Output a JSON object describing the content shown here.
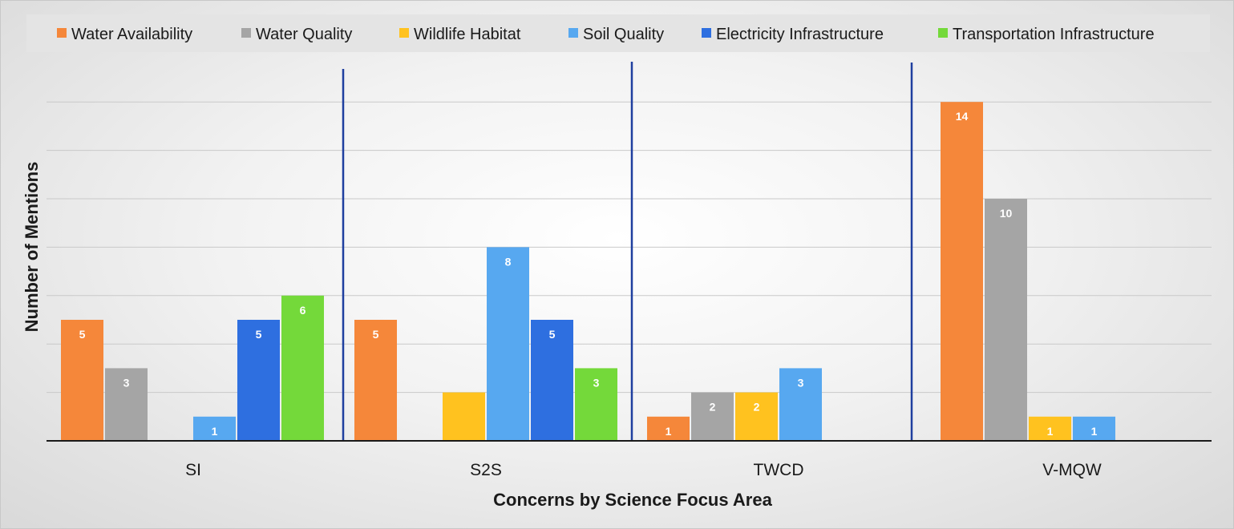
{
  "chart_data": {
    "type": "bar",
    "xlabel": "Concerns by Science Focus Area",
    "ylabel": "Number of Mentions",
    "categories": [
      "SI",
      "S2S",
      "TWCD",
      "V-MQW"
    ],
    "ylim": [
      0,
      14
    ],
    "grid": true,
    "legend_position": "top",
    "series": [
      {
        "name": "Water Availability",
        "color": "#F5873A",
        "values": [
          5,
          5,
          1,
          14
        ],
        "labels": [
          "5",
          "5",
          "1",
          "14"
        ]
      },
      {
        "name": "Water Quality",
        "color": "#A5A5A5",
        "values": [
          3,
          0,
          2,
          10
        ],
        "labels": [
          "3",
          "",
          "2",
          "10"
        ]
      },
      {
        "name": "Wildlife Habitat",
        "color": "#FFC21F",
        "values": [
          0,
          2,
          2,
          1
        ],
        "labels": [
          "",
          "",
          "2",
          "1"
        ]
      },
      {
        "name": "Soil Quality",
        "color": "#57A8F0",
        "values": [
          1,
          8,
          3,
          1
        ],
        "labels": [
          "1",
          "8",
          "3",
          "1"
        ]
      },
      {
        "name": "Electricity Infrastructure",
        "color": "#2E6FE0",
        "values": [
          5,
          5,
          0,
          0
        ],
        "labels": [
          "5",
          "5",
          "",
          ""
        ]
      },
      {
        "name": "Transportation Infrastructure",
        "color": "#74D93A",
        "values": [
          6,
          3,
          0,
          0
        ],
        "labels": [
          "6",
          "3",
          "",
          ""
        ]
      }
    ]
  }
}
